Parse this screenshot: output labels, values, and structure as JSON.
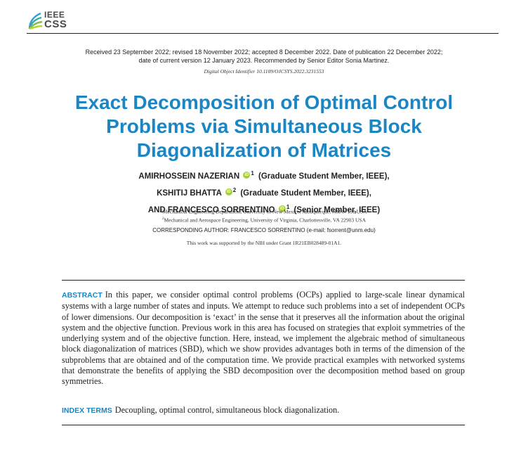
{
  "header": {
    "logo_line1": "IEEE",
    "logo_line2": "CSS",
    "dates_line1": "Received 23 September 2022; revised 18 November 2022; accepted 8 December 2022. Date of publication 22 December 2022;",
    "dates_line2": "date of current version 12 January 2023. Recommended by Senior Editor Sonia Martinez.",
    "doi": "Digital Object Identifier 10.1109/OJCSYS.2022.3231553"
  },
  "title_lines": [
    "Exact Decomposition of Optimal Control",
    "Problems via Simultaneous Block",
    "Diagonalization of Matrices"
  ],
  "authors": [
    {
      "name": "AMIRHOSSEIN NAZERIAN",
      "aff": "1",
      "role": "(Graduate Student Member, IEEE),"
    },
    {
      "name": "KSHITIJ BHATTA",
      "aff": "2",
      "role": "(Graduate Student Member, IEEE),"
    },
    {
      "name": "AND FRANCESCO SORRENTINO",
      "aff": "1",
      "role": "(Senior Member, IEEE)"
    }
  ],
  "affiliations": [
    {
      "sup": "1",
      "text": "Mechanical Engineering Department, University of New Mexico, Albuquerque, NM 87131 USA"
    },
    {
      "sup": "2",
      "text": "Mechanical and Aerospace Engineering, University of Virginia, Charlottesville, VA 22903 USA"
    }
  ],
  "corresponding": "CORRESPONDING AUTHOR: FRANCESCO SORRENTINO (e-mail: fsorrent@unm.edu)",
  "support": "This work was supported by the NIH under Grant 1R21EB028489-01A1.",
  "abstract": {
    "label": "ABSTRACT",
    "text": "In this paper, we consider optimal control problems (OCPs) applied to large-scale linear dynamical systems with a large number of states and inputs. We attempt to reduce such problems into a set of independent OCPs of lower dimensions. Our decomposition is ‘exact’ in the sense that it preserves all the information about the original system and the objective function. Previous work in this area has focused on strategies that exploit symmetries of the underlying system and of the objective function. Here, instead, we implement the algebraic method of simultaneous block diagonalization of matrices (SBD), which we show provides advantages both in terms of the dimension of the subproblems that are obtained and of the computation time. We provide practical examples with networked systems that demonstrate the benefits of applying the SBD decomposition over the decomposition method based on group symmetries."
  },
  "index_terms": {
    "label": "INDEX TERMS",
    "text": "Decoupling, optimal control, simultaneous block diagonalization."
  },
  "colors": {
    "accent": "#1b86c3",
    "orcid": "#a6ce39"
  },
  "icons": [
    "ieee-css-logo-icon",
    "orcid-icon"
  ]
}
